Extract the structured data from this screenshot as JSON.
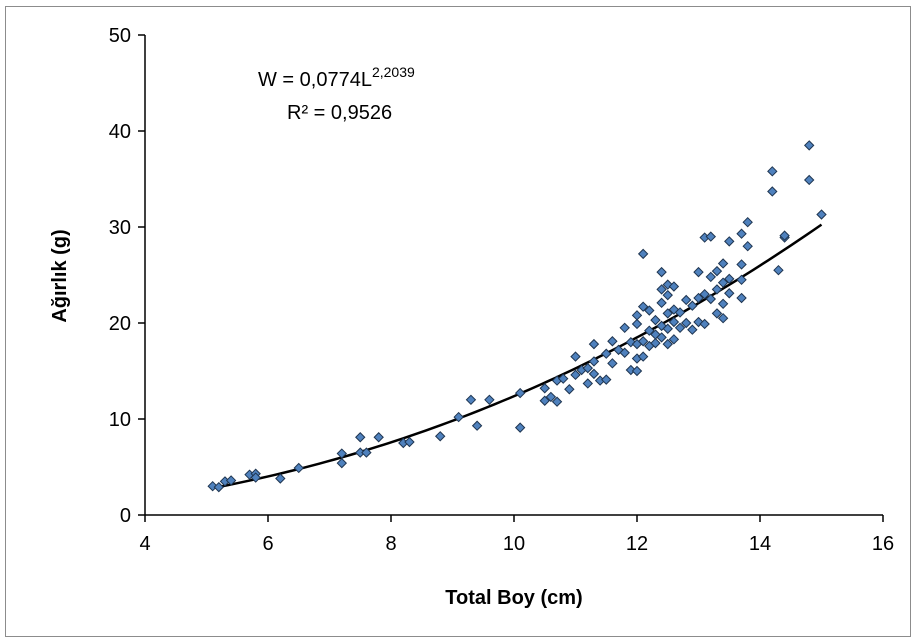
{
  "chart_data": {
    "type": "scatter",
    "xlabel": "Total Boy (cm)",
    "ylabel": "Ağırlık (g)",
    "xlim": [
      4,
      16
    ],
    "ylim": [
      0,
      50
    ],
    "xticks": [
      "4",
      "6",
      "8",
      "10",
      "12",
      "14",
      "16"
    ],
    "yticks": [
      "0",
      "10",
      "20",
      "30",
      "40",
      "50"
    ],
    "grid": false,
    "legend": "none",
    "marker_color": "#4f81bd",
    "trendline": {
      "type": "power",
      "a": 0.0774,
      "b": 2.2039,
      "x_range": [
        5.1,
        15.0
      ],
      "equation_prefix": "W = 0,0774L",
      "equation_exponent": "2,2039",
      "r_squared_label": "R² = 0,9526",
      "color": "#000000"
    },
    "points": [
      [
        5.1,
        3.0
      ],
      [
        5.2,
        2.9
      ],
      [
        5.3,
        3.5
      ],
      [
        5.4,
        3.6
      ],
      [
        5.7,
        4.2
      ],
      [
        5.8,
        4.3
      ],
      [
        5.8,
        3.9
      ],
      [
        6.2,
        3.8
      ],
      [
        6.5,
        4.9
      ],
      [
        7.2,
        6.4
      ],
      [
        7.2,
        5.4
      ],
      [
        7.5,
        8.1
      ],
      [
        7.5,
        6.5
      ],
      [
        7.6,
        6.5
      ],
      [
        7.8,
        8.1
      ],
      [
        8.2,
        7.5
      ],
      [
        8.3,
        7.6
      ],
      [
        8.8,
        8.2
      ],
      [
        9.1,
        10.2
      ],
      [
        9.3,
        12.0
      ],
      [
        9.4,
        9.3
      ],
      [
        9.6,
        12.0
      ],
      [
        10.1,
        9.1
      ],
      [
        10.1,
        12.7
      ],
      [
        10.5,
        11.9
      ],
      [
        10.5,
        13.2
      ],
      [
        10.6,
        12.3
      ],
      [
        10.7,
        14.0
      ],
      [
        10.7,
        11.8
      ],
      [
        10.8,
        14.2
      ],
      [
        10.9,
        13.1
      ],
      [
        11.0,
        14.6
      ],
      [
        11.0,
        16.5
      ],
      [
        11.1,
        15.1
      ],
      [
        11.2,
        15.3
      ],
      [
        11.2,
        13.7
      ],
      [
        11.3,
        14.7
      ],
      [
        11.3,
        16.0
      ],
      [
        11.3,
        17.8
      ],
      [
        11.4,
        14.0
      ],
      [
        11.5,
        16.8
      ],
      [
        11.5,
        14.1
      ],
      [
        11.6,
        15.8
      ],
      [
        11.6,
        18.1
      ],
      [
        11.7,
        17.2
      ],
      [
        11.8,
        16.9
      ],
      [
        11.8,
        19.5
      ],
      [
        11.9,
        18.0
      ],
      [
        11.9,
        15.1
      ],
      [
        12.0,
        15.0
      ],
      [
        12.0,
        16.3
      ],
      [
        12.0,
        17.8
      ],
      [
        12.0,
        19.9
      ],
      [
        12.0,
        20.8
      ],
      [
        12.1,
        16.5
      ],
      [
        12.1,
        18.1
      ],
      [
        12.1,
        21.7
      ],
      [
        12.1,
        27.2
      ],
      [
        12.2,
        17.6
      ],
      [
        12.2,
        19.2
      ],
      [
        12.2,
        21.3
      ],
      [
        12.3,
        17.9
      ],
      [
        12.3,
        18.8
      ],
      [
        12.3,
        20.3
      ],
      [
        12.4,
        18.5
      ],
      [
        12.4,
        19.7
      ],
      [
        12.4,
        22.1
      ],
      [
        12.4,
        23.5
      ],
      [
        12.4,
        25.3
      ],
      [
        12.5,
        17.8
      ],
      [
        12.5,
        19.4
      ],
      [
        12.5,
        21.0
      ],
      [
        12.5,
        22.9
      ],
      [
        12.5,
        24.0
      ],
      [
        12.6,
        18.3
      ],
      [
        12.6,
        20.1
      ],
      [
        12.6,
        21.4
      ],
      [
        12.6,
        23.8
      ],
      [
        12.7,
        19.5
      ],
      [
        12.7,
        21.1
      ],
      [
        12.8,
        20.0
      ],
      [
        12.8,
        22.4
      ],
      [
        12.9,
        19.3
      ],
      [
        12.9,
        21.8
      ],
      [
        13.0,
        20.1
      ],
      [
        13.0,
        22.6
      ],
      [
        13.0,
        25.3
      ],
      [
        13.1,
        19.9
      ],
      [
        13.1,
        23.0
      ],
      [
        13.1,
        28.9
      ],
      [
        13.2,
        22.5
      ],
      [
        13.2,
        24.8
      ],
      [
        13.2,
        29.0
      ],
      [
        13.3,
        21.0
      ],
      [
        13.3,
        23.5
      ],
      [
        13.3,
        25.4
      ],
      [
        13.4,
        20.5
      ],
      [
        13.4,
        22.0
      ],
      [
        13.4,
        24.2
      ],
      [
        13.4,
        26.2
      ],
      [
        13.5,
        23.1
      ],
      [
        13.5,
        24.6
      ],
      [
        13.5,
        28.5
      ],
      [
        13.7,
        22.6
      ],
      [
        13.7,
        24.5
      ],
      [
        13.7,
        26.1
      ],
      [
        13.7,
        29.3
      ],
      [
        13.8,
        28.0
      ],
      [
        13.8,
        30.5
      ],
      [
        14.2,
        33.7
      ],
      [
        14.2,
        35.8
      ],
      [
        14.3,
        25.5
      ],
      [
        14.4,
        28.9
      ],
      [
        14.4,
        29.1
      ],
      [
        14.8,
        34.9
      ],
      [
        14.8,
        38.5
      ],
      [
        15.0,
        31.3
      ]
    ]
  }
}
